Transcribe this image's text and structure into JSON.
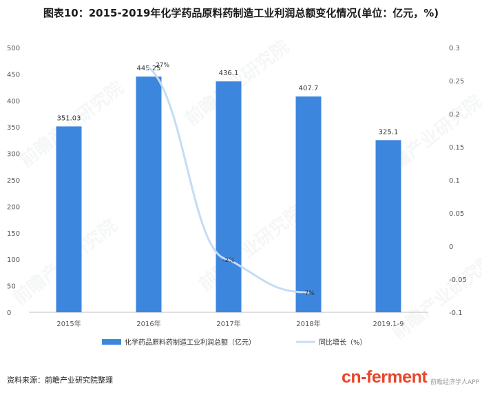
{
  "title": "图表10：2015-2019年化学药品原料药制造工业利润总额变化情况(单位：亿元，%)",
  "source": "资料来源：前瞻产业研究院整理",
  "brand": {
    "main": "cn-ferment",
    "sub": "前瞻经济学人APP"
  },
  "watermark": "前瞻产业研究院",
  "colors": {
    "bar": "#3d86de",
    "line": "#c5dcf4",
    "axis": "#bfbfbf"
  },
  "chart_data": {
    "type": "bar",
    "categories": [
      "2015年",
      "2016年",
      "2017年",
      "2018年",
      "2019.1-9"
    ],
    "series": [
      {
        "name": "化学药品原料药制造工业利润总额（亿元）",
        "type": "bar",
        "axis": "left",
        "values": [
          351.03,
          445.25,
          436.1,
          407.7,
          325.1
        ],
        "labels": [
          "351.03",
          "445.25",
          "436.1",
          "407.7",
          "325.1"
        ]
      },
      {
        "name": "同比增长（%）",
        "type": "line",
        "axis": "right",
        "values": [
          null,
          0.27,
          -0.02,
          -0.07,
          null
        ],
        "labels": [
          "",
          "27%",
          "-2%",
          "-7%",
          ""
        ]
      }
    ],
    "ylim_left": [
      0,
      500
    ],
    "yticks_left": [
      0,
      50,
      100,
      150,
      200,
      250,
      300,
      350,
      400,
      450,
      500
    ],
    "ylim_right": [
      -0.1,
      0.3
    ],
    "yticks_right": [
      "-0.1",
      "-0.05",
      "0",
      "0.05",
      "0.1",
      "0.15",
      "0.2",
      "0.25",
      "0.3"
    ],
    "legend_position": "bottom",
    "grid": false
  }
}
